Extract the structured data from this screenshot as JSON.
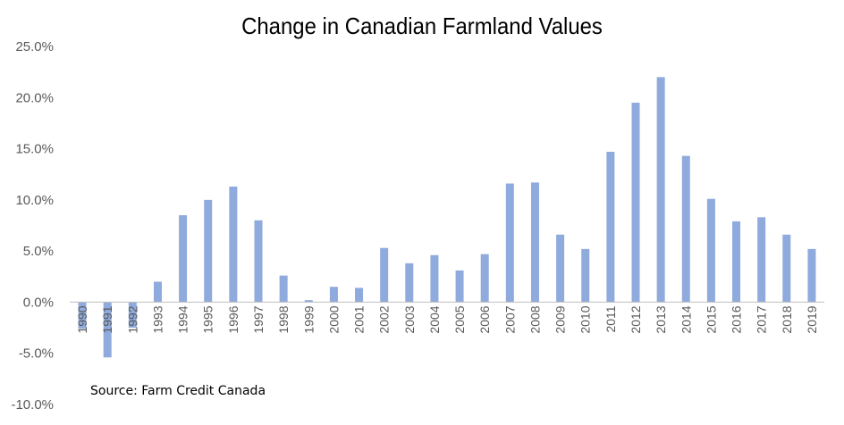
{
  "chart_data": {
    "type": "bar",
    "title": "Change in Canadian Farmland Values",
    "source": "Source: Farm Credit Canada",
    "categories": [
      "1990",
      "1991",
      "1992",
      "1993",
      "1994",
      "1995",
      "1996",
      "1997",
      "1998",
      "1999",
      "2000",
      "2001",
      "2002",
      "2003",
      "2004",
      "2005",
      "2006",
      "2007",
      "2008",
      "2009",
      "2010",
      "2011",
      "2012",
      "2013",
      "2014",
      "2015",
      "2016",
      "2017",
      "2018",
      "2019"
    ],
    "values": [
      -2.6,
      -5.4,
      -2.5,
      2.0,
      8.5,
      10.0,
      11.3,
      8.0,
      2.6,
      0.2,
      1.5,
      1.4,
      5.3,
      3.8,
      4.6,
      3.1,
      4.7,
      11.6,
      11.7,
      6.6,
      5.2,
      14.7,
      19.5,
      22.0,
      14.3,
      10.1,
      7.9,
      8.3,
      6.6,
      5.2
    ],
    "series": [
      {
        "values_ref": "values",
        "color": "#8faadc"
      }
    ],
    "ylim": [
      -10,
      25
    ],
    "yticks": [
      "-10.0%",
      "-5.0%",
      "0.0%",
      "5.0%",
      "10.0%",
      "15.0%",
      "20.0%",
      "25.0%"
    ],
    "grid": false,
    "xlabel": "",
    "ylabel": ""
  }
}
